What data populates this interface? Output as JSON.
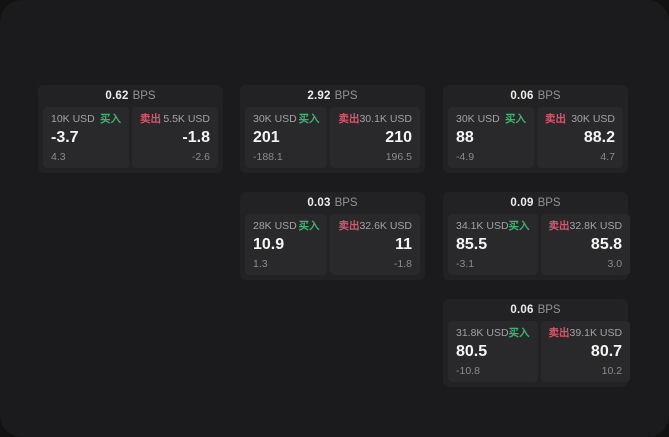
{
  "labels": {
    "bps": "BPS",
    "buy": "买入",
    "sell": "卖出"
  },
  "colors": {
    "page_background": "#1b1b1d",
    "outer_background": "#121213",
    "card_background": "#222224",
    "tile_background": "#29292b",
    "buy_accent": "#3eb370",
    "sell_accent": "#d4566c",
    "value_text": "#f4f4f4",
    "muted_text": "#a2a2a6",
    "sub_text": "#8b8b8e"
  },
  "cards": [
    {
      "bps": "0.62",
      "buy": {
        "amount": "10K USD",
        "value": "-3.7",
        "sub": "4.3"
      },
      "sell": {
        "amount": "5.5K USD",
        "value": "-1.8",
        "sub": "-2.6"
      }
    },
    {
      "bps": "2.92",
      "buy": {
        "amount": "30K USD",
        "value": "201",
        "sub": "-188.1"
      },
      "sell": {
        "amount": "30.1K USD",
        "value": "210",
        "sub": "196.5"
      }
    },
    {
      "bps": "0.06",
      "buy": {
        "amount": "30K USD",
        "value": "88",
        "sub": "-4.9"
      },
      "sell": {
        "amount": "30K USD",
        "value": "88.2",
        "sub": "4.7"
      }
    },
    {
      "bps": "0.03",
      "buy": {
        "amount": "28K USD",
        "value": "10.9",
        "sub": "1.3"
      },
      "sell": {
        "amount": "32.6K USD",
        "value": "11",
        "sub": "-1.8"
      }
    },
    {
      "bps": "0.09",
      "buy": {
        "amount": "34.1K USD",
        "value": "85.5",
        "sub": "-3.1"
      },
      "sell": {
        "amount": "32.8K USD",
        "value": "85.8",
        "sub": "3.0"
      }
    },
    {
      "bps": "0.06",
      "buy": {
        "amount": "31.8K USD",
        "value": "80.5",
        "sub": "-10.8"
      },
      "sell": {
        "amount": "39.1K USD",
        "value": "80.7",
        "sub": "10.2"
      }
    }
  ]
}
